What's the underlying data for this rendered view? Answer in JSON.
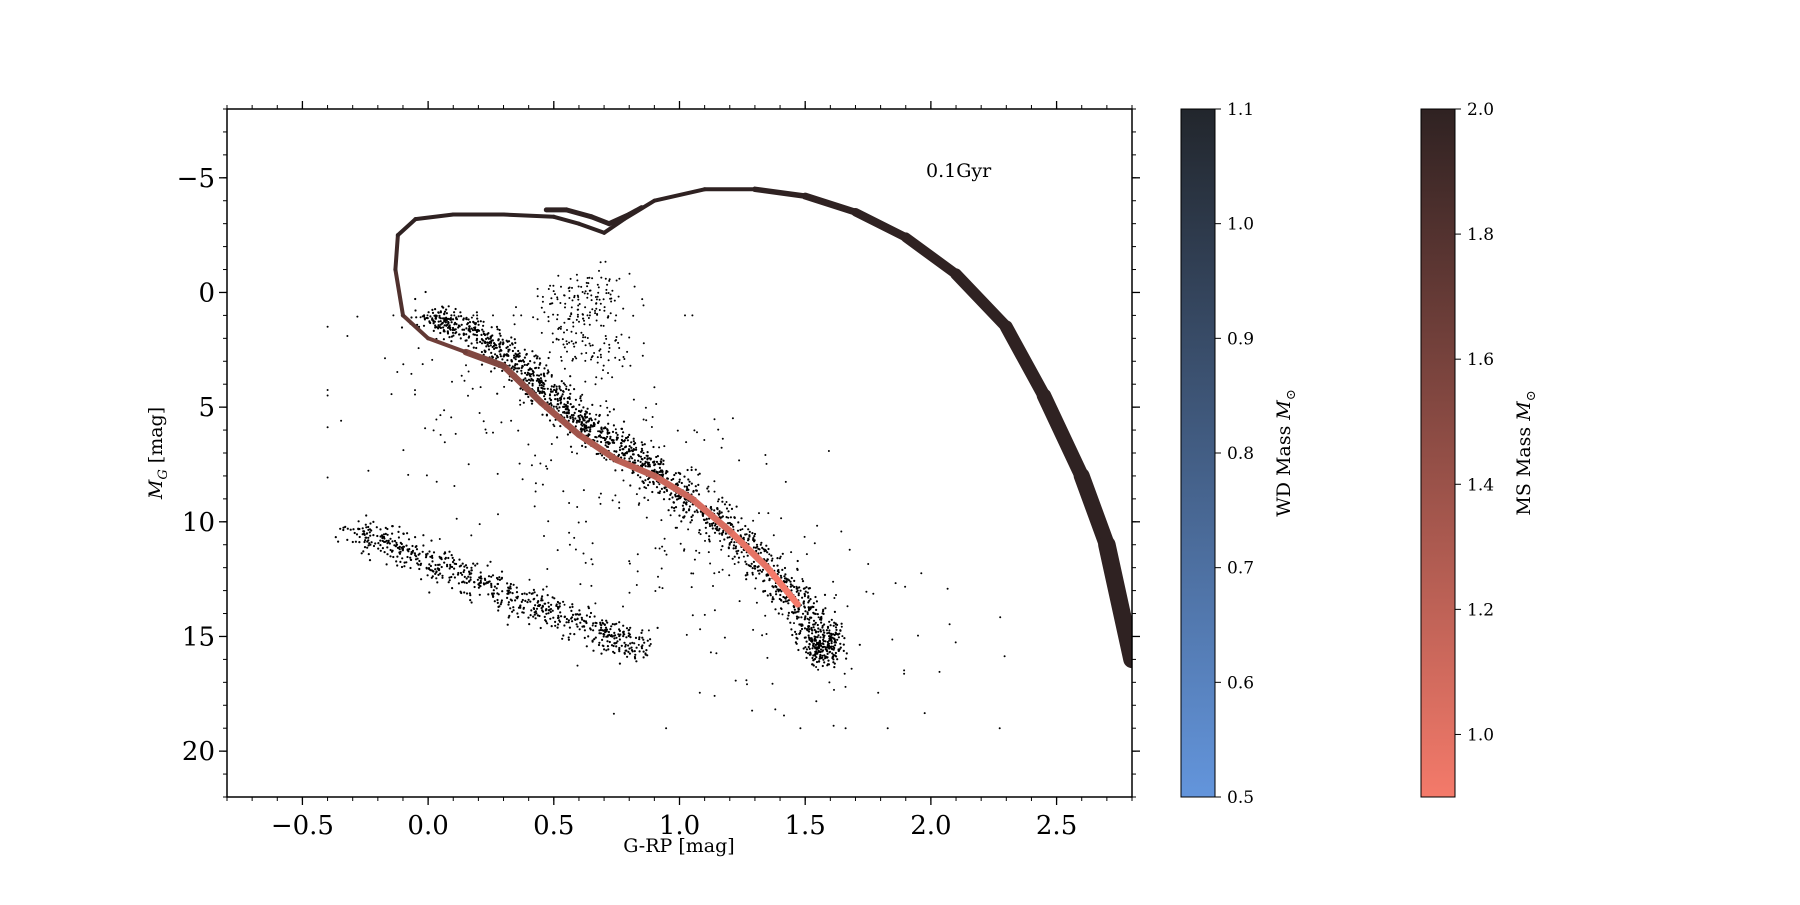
{
  "chart_data": {
    "type": "scatter",
    "title": "",
    "annotation": "0.1Gyr",
    "xlabel": "G-RP [mag]",
    "ylabel": "M_G [mag]",
    "ylabel_parts": {
      "main": "M",
      "sub": "G",
      "unit": " [mag]"
    },
    "xlim": [
      -0.8,
      2.8
    ],
    "ylim": [
      22,
      -8
    ],
    "y_inverted": true,
    "x_ticks": [
      -0.5,
      0.0,
      0.5,
      1.0,
      1.5,
      2.0,
      2.5
    ],
    "x_tick_labels": [
      "−0.5",
      "0.0",
      "0.5",
      "1.0",
      "1.5",
      "2.0",
      "2.5"
    ],
    "y_ticks": [
      -5,
      0,
      5,
      10,
      15,
      20
    ],
    "y_tick_labels": [
      "−5",
      "0",
      "5",
      "10",
      "15",
      "20"
    ],
    "grid": false,
    "series": [
      {
        "kind": "scatter",
        "color": "#000000",
        "main_sequence": [
          [
            0.0,
            1.0
          ],
          [
            0.2,
            1.8
          ],
          [
            0.4,
            3.5
          ],
          [
            0.6,
            5.6
          ],
          [
            0.8,
            7.0
          ],
          [
            1.0,
            8.6
          ],
          [
            1.2,
            10.5
          ],
          [
            1.4,
            12.5
          ],
          [
            1.55,
            14.8
          ],
          [
            1.58,
            16.0
          ]
        ],
        "white_dwarf_sequence": [
          [
            -0.3,
            10.3
          ],
          [
            -0.1,
            11.2
          ],
          [
            0.1,
            12.2
          ],
          [
            0.3,
            13.2
          ],
          [
            0.5,
            14.0
          ],
          [
            0.7,
            14.8
          ],
          [
            0.85,
            15.6
          ]
        ],
        "red_clump": [
          [
            0.5,
            0.5
          ],
          [
            0.6,
            0.0
          ],
          [
            0.7,
            -0.2
          ],
          [
            0.65,
            0.9
          ],
          [
            0.55,
            2.0
          ],
          [
            0.68,
            2.6
          ]
        ],
        "field_range": {
          "x": [
            -0.4,
            2.5
          ],
          "y": [
            1,
            19
          ]
        }
      },
      {
        "kind": "isochrone",
        "label": "0.1Gyr",
        "color_low": "#f47a6a",
        "color_high": "#2f2222",
        "points": [
          [
            1.47,
            13.6
          ],
          [
            1.35,
            12.0
          ],
          [
            1.2,
            10.4
          ],
          [
            1.05,
            9.0
          ],
          [
            0.9,
            8.0
          ],
          [
            0.75,
            7.3
          ],
          [
            0.6,
            6.2
          ],
          [
            0.45,
            4.8
          ],
          [
            0.3,
            3.2
          ],
          [
            0.15,
            2.6
          ],
          [
            0.0,
            2.0
          ],
          [
            -0.1,
            1.0
          ],
          [
            -0.13,
            -1.0
          ],
          [
            -0.12,
            -2.5
          ],
          [
            -0.05,
            -3.2
          ],
          [
            0.1,
            -3.4
          ],
          [
            0.3,
            -3.4
          ],
          [
            0.5,
            -3.3
          ],
          [
            0.6,
            -3.0
          ],
          [
            0.7,
            -2.6
          ],
          [
            0.78,
            -3.2
          ],
          [
            0.9,
            -4.0
          ],
          [
            1.1,
            -4.5
          ],
          [
            1.3,
            -4.5
          ],
          [
            1.5,
            -4.2
          ],
          [
            1.7,
            -3.5
          ],
          [
            1.9,
            -2.4
          ],
          [
            2.1,
            -0.8
          ],
          [
            2.3,
            1.5
          ],
          [
            2.45,
            4.5
          ],
          [
            2.6,
            8.0
          ],
          [
            2.7,
            11.0
          ],
          [
            2.8,
            16.0
          ]
        ],
        "loop_segment": [
          [
            0.47,
            -3.6
          ],
          [
            0.55,
            -3.6
          ],
          [
            0.65,
            -3.3
          ],
          [
            0.72,
            -3.0
          ],
          [
            0.8,
            -3.4
          ],
          [
            0.85,
            -3.7
          ]
        ]
      }
    ],
    "colorbars": [
      {
        "label_main": "WD Mass ",
        "label_symbol": "M",
        "label_sub": "⊙",
        "range": [
          0.5,
          1.1
        ],
        "ticks": [
          0.5,
          0.6,
          0.7,
          0.8,
          0.9,
          1.0,
          1.1
        ],
        "tick_labels": [
          "0.5",
          "0.6",
          "0.7",
          "0.8",
          "0.9",
          "1.0",
          "1.1"
        ],
        "color_low": "#6395dc",
        "color_high": "#22262c"
      },
      {
        "label_main": "MS Mass ",
        "label_symbol": "M",
        "label_sub": "⊙",
        "range": [
          0.9,
          2.0
        ],
        "ticks": [
          1.0,
          1.2,
          1.4,
          1.6,
          1.8,
          2.0
        ],
        "tick_labels": [
          "1.0",
          "1.2",
          "1.4",
          "1.6",
          "1.8",
          "2.0"
        ],
        "color_low": "#f47a6a",
        "color_high": "#2f2222"
      }
    ]
  }
}
